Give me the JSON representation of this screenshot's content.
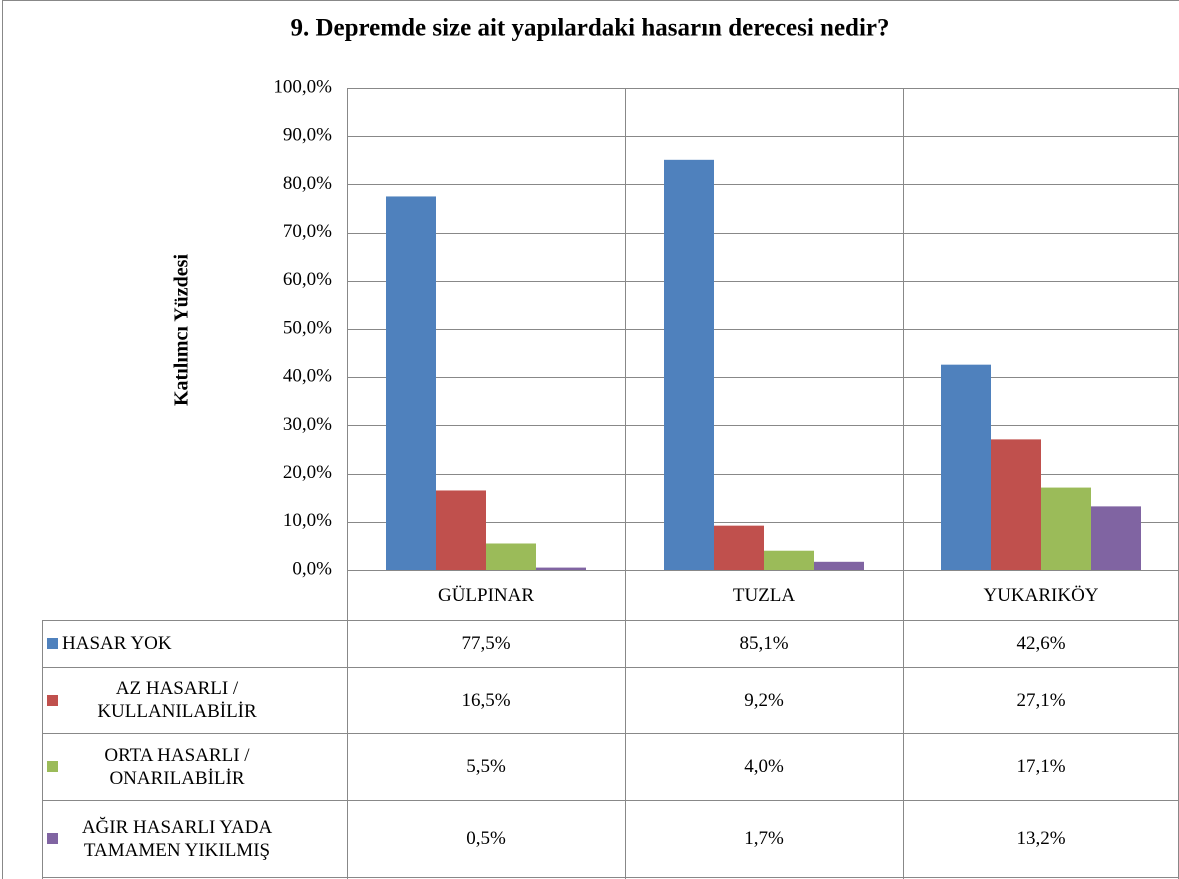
{
  "chart_data": {
    "type": "bar",
    "title": "9. Depremde size ait yapılardaki hasarın derecesi nedir?",
    "y_label": "Katılımcı Yüzdesi",
    "categories": [
      "GÜLPINAR",
      "TUZLA",
      "YUKARIKÖY"
    ],
    "series": [
      {
        "name": "HASAR YOK",
        "color": "#4f81bd",
        "values": [
          77.5,
          85.1,
          42.6
        ],
        "value_labels": [
          "77,5%",
          "85,1%",
          "42,6%"
        ]
      },
      {
        "name": "AZ HASARLI / KULLANILABİLİR",
        "color": "#c0504d",
        "values": [
          16.5,
          9.2,
          27.1
        ],
        "value_labels": [
          "16,5%",
          "9,2%",
          "27,1%"
        ]
      },
      {
        "name": "ORTA HASARLI / ONARILABİLİR",
        "color": "#9bbb59",
        "values": [
          5.5,
          4.0,
          17.1
        ],
        "value_labels": [
          "5,5%",
          "4,0%",
          "17,1%"
        ]
      },
      {
        "name": "AĞIR HASARLI YADA TAMAMEN YIKILMIŞ",
        "color": "#8064a2",
        "values": [
          0.5,
          1.7,
          13.2
        ],
        "value_labels": [
          "0,5%",
          "1,7%",
          "13,2%"
        ]
      }
    ],
    "ylim": [
      0,
      100
    ],
    "yticks": [
      {
        "value": 0,
        "label": "0,0%"
      },
      {
        "value": 10,
        "label": "10,0%"
      },
      {
        "value": 20,
        "label": "20,0%"
      },
      {
        "value": 30,
        "label": "30,0%"
      },
      {
        "value": 40,
        "label": "40,0%"
      },
      {
        "value": 50,
        "label": "50,0%"
      },
      {
        "value": 60,
        "label": "60,0%"
      },
      {
        "value": 70,
        "label": "70,0%"
      },
      {
        "value": 80,
        "label": "80,0%"
      },
      {
        "value": 90,
        "label": "90,0%"
      },
      {
        "value": 100,
        "label": "100,0%"
      }
    ],
    "grid": true
  }
}
